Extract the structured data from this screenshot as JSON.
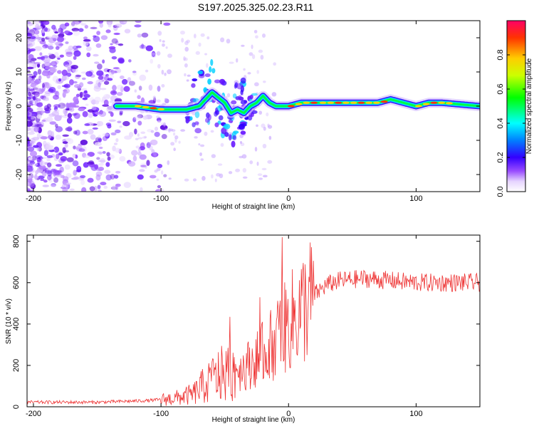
{
  "title": "S197.2025.325.02.23.R11",
  "chart_data": [
    {
      "type": "heatmap",
      "name": "spectrogram",
      "xlabel": "Height of straight line (km)",
      "ylabel": "Frequency (Hz)",
      "xlim": [
        -205,
        150
      ],
      "ylim": [
        -25,
        25
      ],
      "xticks": [
        -200,
        -100,
        0,
        100
      ],
      "yticks": [
        -20,
        -10,
        0,
        10,
        20
      ],
      "colorbar": {
        "label": "Normalized spectral amplitude",
        "range": [
          0,
          1
        ],
        "ticks": [
          0.0,
          0.2,
          0.4,
          0.6,
          0.8
        ]
      },
      "ridge": {
        "description_free": true,
        "x": [
          -135,
          -120,
          -100,
          -80,
          -70,
          -60,
          -50,
          -45,
          -40,
          -35,
          -30,
          -25,
          -20,
          -15,
          -10,
          -5,
          0,
          10,
          20,
          40,
          60,
          70,
          80,
          90,
          100,
          110,
          120,
          150
        ],
        "freq": [
          0,
          0,
          -1,
          -1,
          0,
          4,
          1,
          -2,
          -1,
          -2,
          0,
          1,
          3,
          1,
          0,
          0,
          0,
          1,
          1,
          1,
          1,
          1,
          2,
          1,
          0,
          1,
          1,
          0
        ]
      }
    },
    {
      "type": "line",
      "name": "snr",
      "xlabel": "Height of straight line (km)",
      "ylabel": "SNR (10 * v/v)",
      "xlim": [
        -205,
        150
      ],
      "ylim": [
        0,
        830
      ],
      "xticks": [
        -200,
        -100,
        0,
        100
      ],
      "yticks": [
        0,
        200,
        400,
        600,
        800
      ],
      "color": "#ee3333",
      "envelope": {
        "x": [
          -205,
          -150,
          -110,
          -90,
          -75,
          -65,
          -55,
          -45,
          -35,
          -25,
          -15,
          -8,
          -5,
          0,
          10,
          20,
          30,
          40,
          60,
          80,
          100,
          120,
          150
        ],
        "y": [
          22,
          22,
          30,
          40,
          60,
          110,
          150,
          170,
          190,
          230,
          290,
          340,
          360,
          400,
          470,
          540,
          590,
          610,
          620,
          610,
          600,
          600,
          600
        ]
      }
    }
  ]
}
